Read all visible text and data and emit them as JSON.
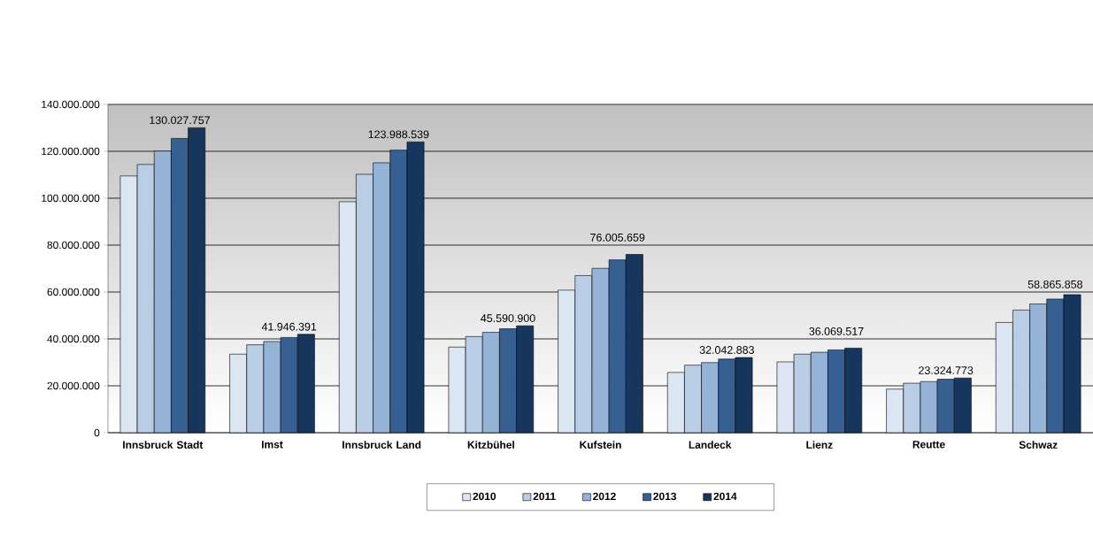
{
  "chart_data": {
    "type": "bar",
    "categories": [
      "Innsbruck Stadt",
      "Imst",
      "Innsbruck Land",
      "Kitzbühel",
      "Kufstein",
      "Landeck",
      "Lienz",
      "Reutte",
      "Schwaz"
    ],
    "series": [
      {
        "name": "2010",
        "color": "#dce6f2",
        "values": [
          109500000,
          33500000,
          98500000,
          36500000,
          60800000,
          25700000,
          30200000,
          18600000,
          47000000
        ]
      },
      {
        "name": "2011",
        "color": "#b9cde5",
        "values": [
          114400000,
          37500000,
          110200000,
          41000000,
          67000000,
          28800000,
          33500000,
          21100000,
          52300000
        ]
      },
      {
        "name": "2012",
        "color": "#95b3d7",
        "values": [
          120100000,
          38900000,
          115100000,
          42800000,
          70100000,
          29900000,
          34300000,
          21800000,
          54900000
        ]
      },
      {
        "name": "2013",
        "color": "#366092",
        "values": [
          125500000,
          40600000,
          120500000,
          44300000,
          73700000,
          31400000,
          35300000,
          22800000,
          57000000
        ]
      },
      {
        "name": "2014",
        "color": "#17365d",
        "values": [
          130027757,
          41946391,
          123988539,
          45590900,
          76005659,
          32042883,
          36069517,
          23324773,
          58865858
        ],
        "value_labels": [
          "130.027.757",
          "41.946.391",
          "123.988.539",
          "45.590.900",
          "76.005.659",
          "32.042.883",
          "36.069.517",
          "23.324.773",
          "58.865.858"
        ]
      }
    ],
    "ylim": [
      0,
      140000000
    ],
    "yticks": [
      {
        "value": 0,
        "label": "0"
      },
      {
        "value": 20000000,
        "label": "20.000.000"
      },
      {
        "value": 40000000,
        "label": "40.000.000"
      },
      {
        "value": 60000000,
        "label": "60.000.000"
      },
      {
        "value": 80000000,
        "label": "80.000.000"
      },
      {
        "value": 100000000,
        "label": "100.000.000"
      },
      {
        "value": 120000000,
        "label": "120.000.000"
      },
      {
        "value": 140000000,
        "label": "140.000.000"
      }
    ],
    "grid": "y",
    "legend": "bottom"
  }
}
